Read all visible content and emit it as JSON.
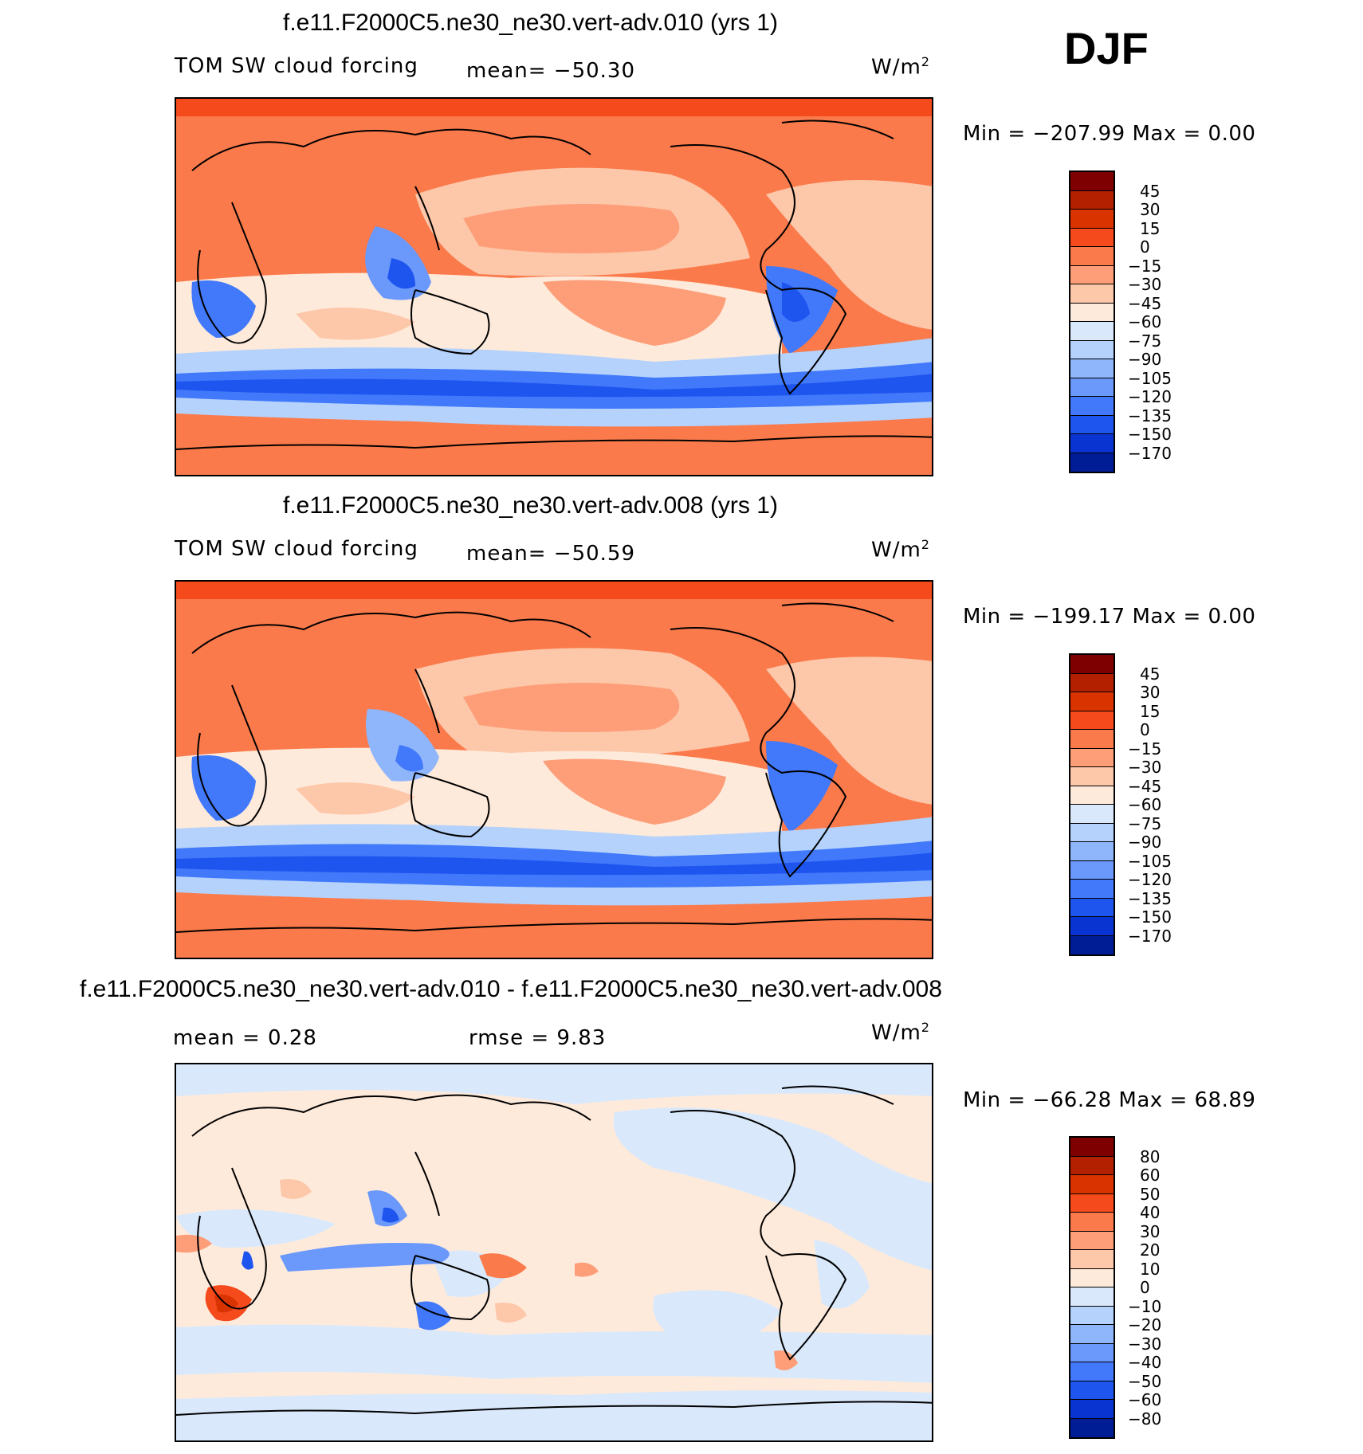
{
  "season": "DJF",
  "panels": [
    {
      "title": "f.e11.F2000C5.ne30_ne30.vert-adv.010 (yrs 1)",
      "variable": "TOM SW cloud forcing",
      "stat": "mean= −50.30",
      "units": "W/m",
      "units_sup": "2",
      "minmax": "Min = −207.99 Max =    0.00",
      "colorbar": {
        "colors": [
          "#7f0000",
          "#b22000",
          "#d93300",
          "#f44a1c",
          "#fb7a4b",
          "#fd9e78",
          "#fdc7a9",
          "#feeadb",
          "#d9e9fb",
          "#b4d2fb",
          "#8fb5fb",
          "#6a98fb",
          "#4179fa",
          "#1f55ef",
          "#0a34d2",
          "#001d96"
        ],
        "ticks": [
          "45",
          "30",
          "15",
          "0",
          "−15",
          "−30",
          "−45",
          "−60",
          "−75",
          "−90",
          "−105",
          "−120",
          "−135",
          "−150",
          "−170"
        ]
      }
    },
    {
      "title": "f.e11.F2000C5.ne30_ne30.vert-adv.008 (yrs 1)",
      "variable": "TOM SW cloud forcing",
      "stat": "mean= −50.59",
      "units": "W/m",
      "units_sup": "2",
      "minmax": "Min = −199.17 Max =    0.00",
      "colorbar": {
        "colors": [
          "#7f0000",
          "#b22000",
          "#d93300",
          "#f44a1c",
          "#fb7a4b",
          "#fd9e78",
          "#fdc7a9",
          "#feeadb",
          "#d9e9fb",
          "#b4d2fb",
          "#8fb5fb",
          "#6a98fb",
          "#4179fa",
          "#1f55ef",
          "#0a34d2",
          "#001d96"
        ],
        "ticks": [
          "45",
          "30",
          "15",
          "0",
          "−15",
          "−30",
          "−45",
          "−60",
          "−75",
          "−90",
          "−105",
          "−120",
          "−135",
          "−150",
          "−170"
        ]
      }
    },
    {
      "title": "f.e11.F2000C5.ne30_ne30.vert-adv.010 - f.e11.F2000C5.ne30_ne30.vert-adv.008",
      "stat_left": "mean =    0.28",
      "stat_right": "rmse =    9.83",
      "units": "W/m",
      "units_sup": "2",
      "minmax": "Min = −66.28 Max =  68.89",
      "colorbar": {
        "colors": [
          "#7f0000",
          "#b22000",
          "#d93300",
          "#f44a1c",
          "#fb7a4b",
          "#fd9e78",
          "#fdc7a9",
          "#feeadb",
          "#d9e9fb",
          "#b4d2fb",
          "#8fb5fb",
          "#6a98fb",
          "#4179fa",
          "#1f55ef",
          "#0a34d2",
          "#001d96"
        ],
        "ticks": [
          "80",
          "60",
          "50",
          "40",
          "30",
          "20",
          "10",
          "0",
          "−10",
          "−20",
          "−30",
          "−40",
          "−50",
          "−60",
          "−80"
        ]
      }
    }
  ]
}
